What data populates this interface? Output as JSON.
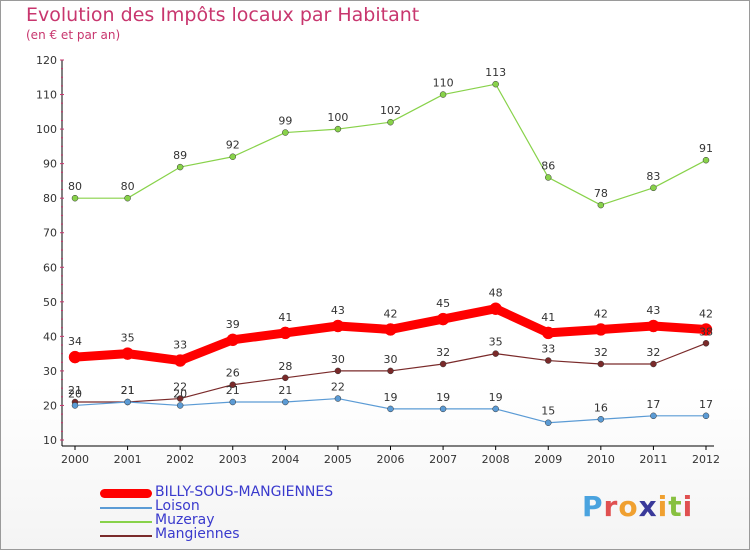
{
  "header": {
    "title": "Evolution des Impôts locaux par Habitant",
    "subtitle": "(en € et par an)"
  },
  "legend": {
    "items": [
      {
        "label": "BILLY-SOUS-MANGIENNES",
        "color": "#ff0000"
      },
      {
        "label": "Loison",
        "color": "#5b9bd5"
      },
      {
        "label": "Muzeray",
        "color": "#88d24a"
      },
      {
        "label": "Mangiennes",
        "color": "#7a2a2a"
      }
    ]
  },
  "logo": {
    "letters": [
      "P",
      "r",
      "o",
      "x",
      "i",
      "t",
      "i"
    ],
    "colors": [
      "#4aa3df",
      "#e05050",
      "#f0a030",
      "#3a3a9a",
      "#f0a030",
      "#88c040",
      "#e05050"
    ]
  },
  "chart_data": {
    "type": "line",
    "x": [
      "2000",
      "2001",
      "2002",
      "2003",
      "2004",
      "2005",
      "2006",
      "2007",
      "2008",
      "2009",
      "2010",
      "2011",
      "2012"
    ],
    "ylim": [
      10,
      120
    ],
    "yticks": [
      10,
      20,
      30,
      40,
      50,
      60,
      70,
      80,
      90,
      100,
      110,
      120
    ],
    "grid": false,
    "series": [
      {
        "name": "Muzeray",
        "color": "#88d24a",
        "values": [
          80,
          80,
          89,
          92,
          99,
          100,
          102,
          110,
          113,
          86,
          78,
          83,
          91
        ]
      },
      {
        "name": "Mangiennes",
        "color": "#7a2a2a",
        "values": [
          21,
          21,
          22,
          26,
          28,
          30,
          30,
          32,
          35,
          33,
          32,
          32,
          38
        ]
      },
      {
        "name": "Loison",
        "color": "#5b9bd5",
        "values": [
          20,
          21,
          20,
          21,
          21,
          22,
          19,
          19,
          19,
          15,
          16,
          17,
          17
        ]
      },
      {
        "name": "BILLY-SOUS-MANGIENNES",
        "color": "#ff0000",
        "values": [
          34,
          35,
          33,
          39,
          41,
          43,
          42,
          45,
          48,
          41,
          42,
          43,
          42
        ]
      }
    ],
    "labels": [
      {
        "series": "Muzeray",
        "texts": [
          "80",
          "80",
          "89",
          "92",
          "99",
          "100",
          "102",
          "110",
          "113",
          "86",
          "78",
          "83",
          "91"
        ]
      },
      {
        "series": "Mangiennes",
        "texts": [
          "21",
          "21",
          "22",
          "26",
          "28",
          "30",
          "30",
          "32",
          "35",
          "33",
          "32",
          "32",
          "38"
        ]
      },
      {
        "series": "Loison",
        "texts": [
          "20",
          "21",
          "20",
          "21",
          "21",
          "22",
          "19",
          "19",
          "19",
          "15",
          "16",
          "17",
          "17"
        ]
      },
      {
        "series": "BILLY-SOUS-MANGIENNES",
        "texts": [
          "34",
          "35",
          "33",
          "39",
          "41",
          "43",
          "42",
          "45",
          "48",
          "41",
          "42",
          "43",
          "42"
        ]
      }
    ]
  }
}
